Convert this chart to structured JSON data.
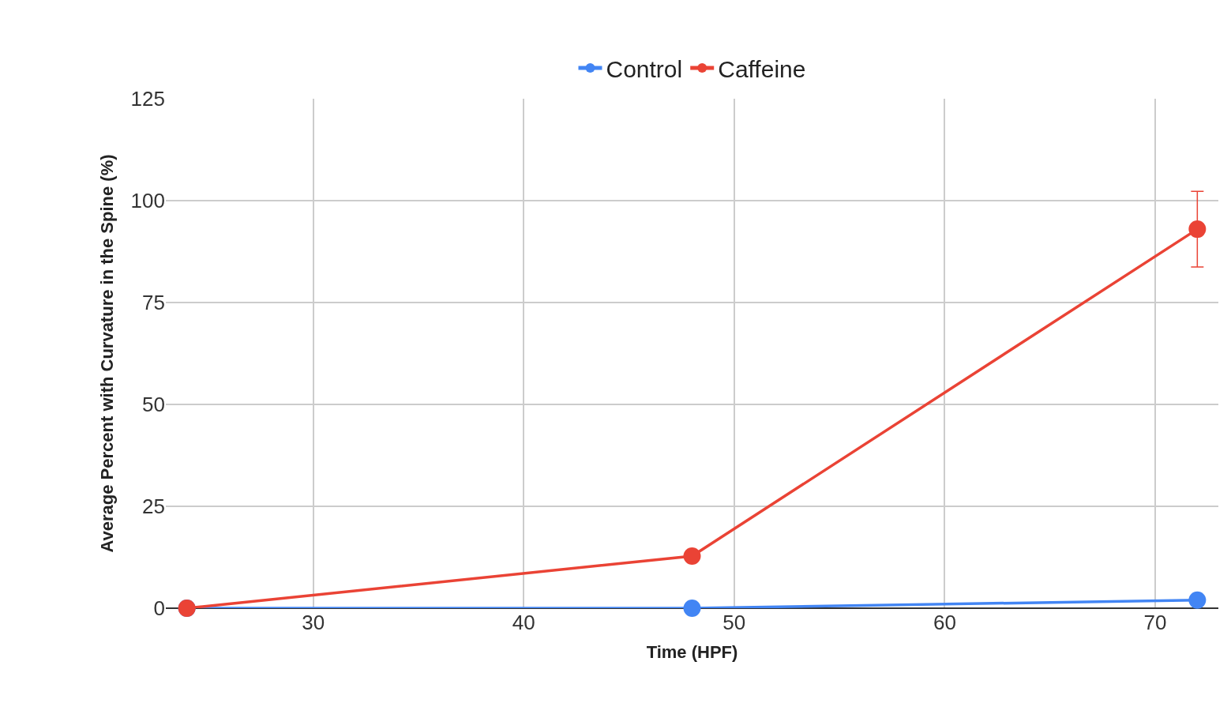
{
  "chart_data": {
    "type": "line",
    "xlabel": "Time (HPF)",
    "ylabel": "Average Percent with Curvature in the Spine (%)",
    "x": [
      24,
      48,
      72
    ],
    "series": [
      {
        "name": "Control",
        "color": "#4285f4",
        "values": [
          0,
          0,
          2
        ]
      },
      {
        "name": "Caffeine",
        "color": "#ea4335",
        "values": [
          0,
          12.8,
          93
        ],
        "errors": [
          null,
          null,
          9.3
        ]
      }
    ],
    "xlim": [
      23,
      73
    ],
    "xticks": [
      30,
      40,
      50,
      60,
      70
    ],
    "ylim": [
      0,
      125
    ],
    "yticks": [
      0,
      25,
      50,
      75,
      100,
      125
    ],
    "grid": true,
    "legend": "top",
    "marker": "circle",
    "line_style": "solid"
  }
}
